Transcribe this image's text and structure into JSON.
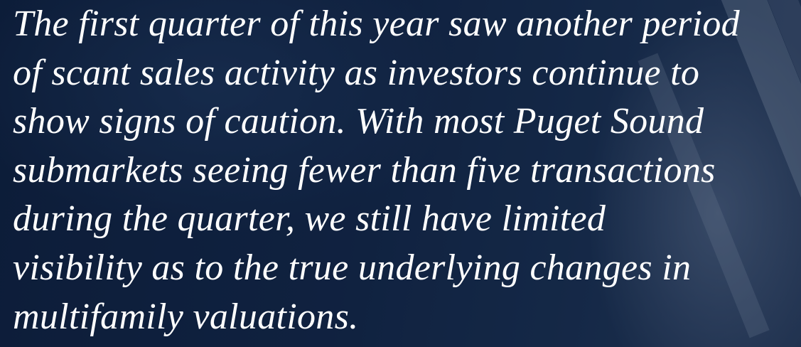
{
  "paragraph": {
    "lines": [
      "The first quarter of this year saw another period",
      "of scant sales activity as investors continue to",
      "show signs of caution. With most Puget Sound",
      "submarkets seeing fewer than five transactions",
      "during the quarter, we still have limited",
      "visibility as to the true underlying changes in",
      "multifamily valuations."
    ]
  }
}
